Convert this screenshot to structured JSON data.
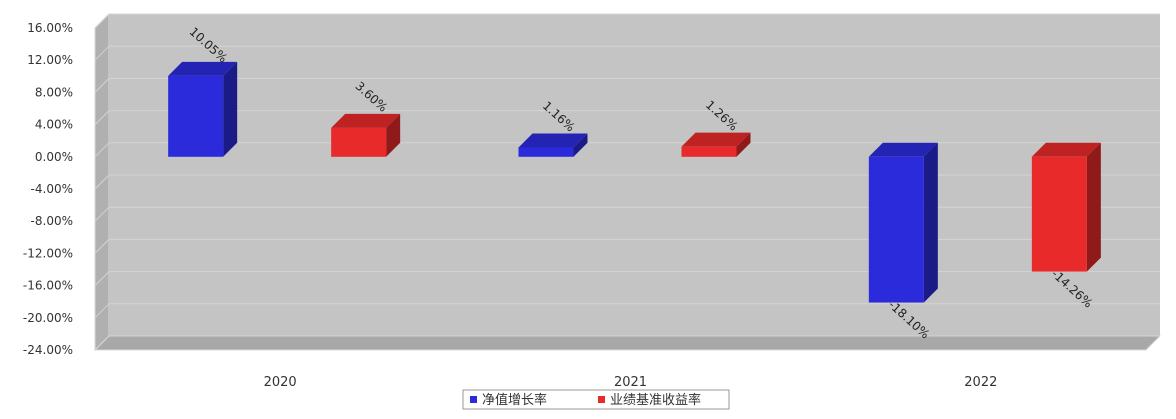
{
  "chart_data": {
    "type": "bar",
    "title": "",
    "xlabel": "",
    "ylabel": "",
    "categories": [
      "2020",
      "2021",
      "2022"
    ],
    "series": [
      {
        "name": "净值增长率",
        "values": [
          10.05,
          1.16,
          -18.1
        ],
        "labels": [
          "10.05%",
          "1.16%",
          "-18.10%"
        ],
        "color": "#2b2bdc"
      },
      {
        "name": "业绩基准收益率",
        "values": [
          3.6,
          1.26,
          -14.26
        ],
        "labels": [
          "3.60%",
          "1.26%",
          "-14.26%"
        ],
        "color": "#e82a2a"
      }
    ],
    "ylim": [
      -24,
      16
    ],
    "yticks": [
      16,
      12,
      8,
      4,
      0,
      -4,
      -8,
      -12,
      -16,
      -20,
      -24
    ],
    "ytick_labels": [
      "16.00%",
      "12.00%",
      "8.00%",
      "4.00%",
      "0.00%",
      "-4.00%",
      "-8.00%",
      "-12.00%",
      "-16.00%",
      "-20.00%",
      "-24.00%"
    ],
    "grid": true,
    "legend_position": "bottom-center",
    "style": "3d-bar",
    "plot_background": "#c4c4c4"
  }
}
